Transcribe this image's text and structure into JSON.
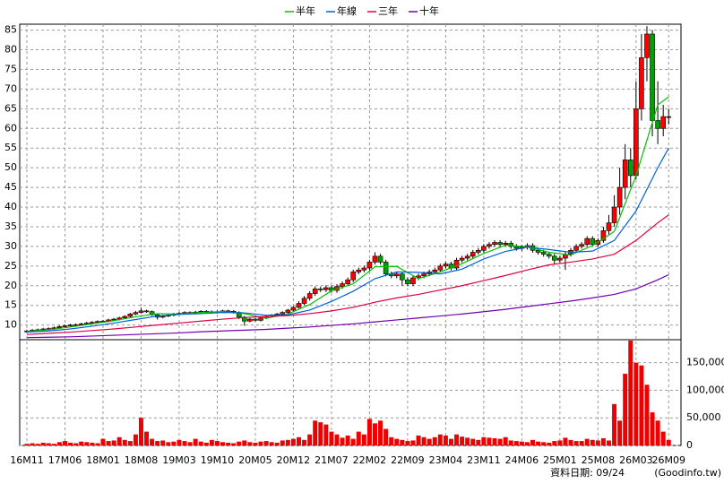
{
  "chart_data": {
    "type": "candlestick",
    "categories": [
      "16M11",
      null,
      null,
      null,
      null,
      null,
      null,
      "17M06",
      null,
      null,
      null,
      null,
      null,
      null,
      "18M01",
      null,
      null,
      null,
      null,
      null,
      null,
      "18M08",
      null,
      null,
      null,
      null,
      null,
      null,
      "19M03",
      null,
      null,
      null,
      null,
      null,
      null,
      "19M10",
      null,
      null,
      null,
      null,
      null,
      null,
      "20M05",
      null,
      null,
      null,
      null,
      null,
      null,
      "20M12",
      null,
      null,
      null,
      null,
      null,
      null,
      "21M07",
      null,
      null,
      null,
      null,
      null,
      null,
      "22M02",
      null,
      null,
      null,
      null,
      null,
      null,
      "22M09",
      null,
      null,
      null,
      null,
      null,
      null,
      "23M04",
      null,
      null,
      null,
      null,
      null,
      null,
      "23M11",
      null,
      null,
      null,
      null,
      null,
      null,
      "24M06",
      null,
      null,
      null,
      null,
      null,
      null,
      "25M01",
      null,
      null,
      null,
      null,
      null,
      null,
      "25M08",
      null,
      null,
      null,
      null,
      null,
      null,
      "26M03",
      null,
      null,
      null,
      null,
      null,
      "26M09"
    ],
    "open": [
      8.3,
      8.5,
      8.7,
      8.8,
      9.0,
      9.1,
      9.3,
      9.6,
      9.8,
      10.0,
      10.1,
      10.3,
      10.5,
      10.7,
      10.9,
      11.0,
      11.3,
      11.5,
      11.8,
      12.2,
      12.8,
      13.2,
      13.6,
      13.4,
      12.6,
      12.0,
      12.3,
      12.5,
      12.8,
      13.0,
      13.2,
      13.0,
      13.3,
      13.5,
      13.4,
      13.2,
      13.4,
      13.6,
      13.5,
      13.2,
      12.0,
      11.0,
      11.5,
      11.2,
      11.8,
      12.2,
      12.5,
      12.8,
      13.2,
      13.8,
      14.5,
      15.5,
      16.8,
      18.0,
      19.2,
      19.0,
      19.5,
      18.8,
      19.8,
      20.5,
      21.5,
      23.5,
      24.0,
      24.5,
      26.0,
      27.5,
      26.0,
      23.0,
      22.5,
      23.0,
      21.5,
      20.5,
      22.0,
      22.5,
      23.0,
      23.5,
      24.0,
      25.0,
      25.5,
      24.5,
      26.5,
      27.0,
      27.5,
      28.5,
      29.0,
      30.0,
      30.5,
      31.0,
      30.5,
      30.8,
      30.0,
      29.5,
      29.8,
      30.2,
      29.0,
      28.5,
      28.0,
      27.5,
      26.5,
      27.0,
      28.0,
      29.0,
      30.0,
      30.5,
      32.0,
      30.5,
      31.5,
      34.0,
      36.0,
      40.0,
      45.0,
      52.0,
      48.0,
      65.0,
      78.0,
      84.0,
      62.0,
      60.0,
      63.0
    ],
    "high": [
      8.8,
      9.0,
      9.1,
      9.3,
      9.4,
      9.6,
      9.9,
      10.1,
      10.3,
      10.4,
      10.6,
      10.8,
      11.0,
      11.2,
      11.3,
      11.6,
      11.8,
      12.1,
      12.5,
      13.1,
      13.6,
      14.4,
      13.9,
      13.7,
      12.9,
      12.6,
      12.8,
      13.1,
      13.3,
      13.5,
      13.5,
      13.6,
      13.8,
      13.8,
      13.7,
      13.7,
      13.9,
      13.9,
      13.8,
      13.5,
      12.3,
      11.8,
      11.8,
      12.1,
      12.5,
      12.8,
      13.1,
      13.5,
      14.1,
      14.8,
      16.1,
      17.4,
      18.6,
      19.8,
      19.8,
      20.1,
      20.1,
      20.4,
      21.1,
      22.1,
      24.1,
      24.6,
      25.1,
      26.6,
      28.5,
      28.1,
      26.6,
      23.6,
      23.6,
      23.6,
      22.1,
      22.6,
      23.1,
      23.6,
      24.1,
      24.6,
      25.6,
      26.1,
      26.1,
      27.1,
      27.6,
      28.1,
      29.1,
      29.6,
      30.6,
      31.1,
      31.6,
      31.6,
      31.4,
      31.4,
      30.6,
      30.4,
      30.8,
      30.8,
      29.6,
      29.1,
      28.6,
      28.1,
      27.6,
      28.6,
      29.6,
      30.6,
      31.1,
      32.6,
      32.6,
      32.1,
      35.0,
      38.0,
      43.0,
      50.0,
      56.0,
      55.0,
      72.0,
      84.0,
      86.0,
      85.0,
      72.0,
      66.0,
      65.0
    ],
    "low": [
      8.0,
      8.2,
      8.4,
      8.5,
      8.7,
      8.8,
      9.0,
      9.3,
      9.5,
      9.7,
      9.8,
      10.0,
      10.2,
      10.4,
      10.6,
      10.7,
      11.0,
      11.2,
      11.5,
      11.9,
      12.5,
      12.9,
      13.1,
      12.3,
      11.4,
      11.7,
      12.0,
      12.2,
      12.5,
      12.7,
      12.7,
      12.7,
      13.0,
      13.1,
      12.9,
      12.9,
      13.1,
      13.2,
      12.9,
      11.5,
      9.8,
      10.7,
      10.9,
      10.9,
      11.5,
      11.9,
      12.2,
      12.5,
      12.9,
      13.5,
      14.2,
      15.0,
      16.2,
      17.4,
      18.4,
      18.4,
      18.2,
      18.2,
      19.2,
      19.9,
      20.9,
      22.9,
      23.4,
      23.9,
      25.4,
      25.4,
      22.4,
      21.9,
      21.9,
      20.0,
      19.9,
      19.9,
      21.4,
      21.9,
      22.4,
      22.9,
      23.4,
      24.4,
      23.9,
      23.9,
      25.9,
      26.4,
      26.9,
      27.9,
      28.4,
      29.4,
      29.9,
      29.9,
      29.9,
      29.4,
      28.9,
      28.9,
      29.2,
      28.4,
      27.9,
      27.4,
      26.9,
      25.5,
      25.9,
      24.0,
      27.4,
      28.4,
      29.4,
      29.9,
      29.9,
      29.9,
      30.9,
      33.0,
      35.0,
      38.0,
      42.0,
      45.0,
      47.0,
      62.0,
      72.0,
      58.0,
      56.0,
      58.0,
      61.0
    ],
    "close": [
      8.5,
      8.7,
      8.8,
      9.0,
      9.1,
      9.3,
      9.6,
      9.8,
      10.0,
      10.1,
      10.3,
      10.5,
      10.7,
      10.9,
      11.0,
      11.3,
      11.5,
      11.8,
      12.2,
      12.8,
      13.2,
      13.6,
      13.4,
      12.6,
      12.0,
      12.3,
      12.5,
      12.8,
      13.0,
      13.2,
      13.0,
      13.3,
      13.5,
      13.4,
      13.2,
      13.4,
      13.6,
      13.5,
      13.2,
      12.0,
      11.0,
      11.5,
      11.2,
      11.8,
      12.2,
      12.5,
      12.8,
      13.2,
      13.8,
      14.5,
      15.5,
      16.8,
      18.0,
      19.2,
      19.0,
      19.5,
      18.8,
      19.8,
      20.5,
      21.5,
      23.5,
      24.0,
      24.5,
      26.0,
      27.5,
      26.0,
      23.0,
      22.5,
      23.0,
      21.5,
      20.5,
      22.0,
      22.5,
      23.0,
      23.5,
      24.0,
      25.0,
      25.5,
      24.5,
      26.5,
      27.0,
      27.5,
      28.5,
      29.0,
      30.0,
      30.5,
      31.0,
      30.5,
      30.8,
      30.0,
      29.5,
      29.8,
      30.2,
      29.0,
      28.5,
      28.0,
      27.5,
      26.5,
      27.0,
      28.0,
      29.0,
      30.0,
      30.5,
      32.0,
      30.5,
      31.5,
      34.0,
      36.0,
      40.0,
      45.0,
      52.0,
      48.0,
      65.0,
      78.0,
      84.0,
      62.0,
      60.0,
      63.0,
      63.0
    ],
    "up_color": "#ff0000",
    "down_color": "#00a000",
    "ylim": [
      6.5,
      86.5
    ],
    "yticks": [
      10,
      15,
      20,
      25,
      30,
      35,
      40,
      45,
      50,
      55,
      60,
      65,
      70,
      75,
      80,
      85
    ],
    "grid": true,
    "series": [
      {
        "name": "半年",
        "color": "#00c000",
        "x": [
          0,
          4,
          8,
          12,
          16,
          20,
          24,
          28,
          32,
          36,
          40,
          44,
          48,
          52,
          56,
          60,
          64,
          68,
          72,
          76,
          80,
          84,
          88,
          92,
          96,
          100,
          104,
          108,
          112,
          116,
          118
        ],
        "values": [
          8.4,
          8.8,
          9.5,
          10.3,
          11.1,
          12.1,
          12.9,
          12.8,
          13.2,
          13.4,
          12.9,
          11.7,
          12.8,
          15.2,
          18.7,
          20.5,
          24.8,
          24.9,
          21.8,
          23.5,
          25.6,
          28.2,
          30.3,
          29.9,
          28.5,
          27.8,
          30.2,
          33.8,
          48.0,
          66.0,
          68.0
        ]
      },
      {
        "name": "年線",
        "color": "#0060e0",
        "x": [
          0,
          4,
          8,
          12,
          16,
          20,
          24,
          28,
          32,
          36,
          40,
          44,
          48,
          52,
          56,
          60,
          64,
          68,
          72,
          76,
          80,
          84,
          88,
          92,
          96,
          100,
          104,
          108,
          112,
          116,
          118
        ],
        "values": [
          8.2,
          8.5,
          9.0,
          9.7,
          10.5,
          11.4,
          12.3,
          12.7,
          12.9,
          13.2,
          13.1,
          12.5,
          12.6,
          13.8,
          16.0,
          18.6,
          21.8,
          23.5,
          23.4,
          23.0,
          24.2,
          26.8,
          28.7,
          29.8,
          29.2,
          28.5,
          28.8,
          31.5,
          39.0,
          50.0,
          55.0
        ]
      },
      {
        "name": "三年",
        "color": "#e00040",
        "x": [
          0,
          4,
          8,
          12,
          16,
          20,
          24,
          28,
          32,
          36,
          40,
          44,
          48,
          52,
          56,
          60,
          64,
          68,
          72,
          76,
          80,
          84,
          88,
          92,
          96,
          100,
          104,
          108,
          112,
          116,
          118
        ],
        "values": [
          7.6,
          7.9,
          8.2,
          8.6,
          9.0,
          9.5,
          10.0,
          10.5,
          11.0,
          11.5,
          11.9,
          12.2,
          12.4,
          12.9,
          13.6,
          14.5,
          15.8,
          16.9,
          17.8,
          18.9,
          20.0,
          21.3,
          22.6,
          24.0,
          25.3,
          26.0,
          26.8,
          28.0,
          31.5,
          36.0,
          38.0
        ]
      },
      {
        "name": "十年",
        "color": "#7000b0",
        "x": [
          0,
          4,
          8,
          12,
          16,
          20,
          24,
          28,
          32,
          36,
          40,
          44,
          48,
          52,
          56,
          60,
          64,
          68,
          72,
          76,
          80,
          84,
          88,
          92,
          96,
          100,
          104,
          108,
          112,
          116,
          118
        ],
        "values": [
          6.8,
          6.9,
          7.0,
          7.2,
          7.4,
          7.6,
          7.8,
          8.0,
          8.3,
          8.5,
          8.7,
          8.9,
          9.2,
          9.5,
          9.9,
          10.3,
          10.8,
          11.3,
          11.8,
          12.3,
          12.8,
          13.4,
          14.0,
          14.7,
          15.4,
          16.1,
          16.9,
          17.8,
          19.2,
          21.5,
          22.8
        ]
      }
    ],
    "volume": {
      "color": "#ee0000",
      "values": [
        3000,
        4000,
        3000,
        5000,
        4000,
        3000,
        6000,
        8000,
        5000,
        4000,
        7000,
        6000,
        5000,
        4000,
        12000,
        8000,
        9000,
        15000,
        10000,
        8000,
        20000,
        50000,
        25000,
        12000,
        8000,
        9000,
        6000,
        7000,
        10000,
        8000,
        6000,
        12000,
        7000,
        5000,
        10000,
        8000,
        6000,
        5000,
        4000,
        7000,
        9000,
        6000,
        5000,
        7000,
        8000,
        6000,
        5000,
        9000,
        10000,
        12000,
        15000,
        10000,
        20000,
        45000,
        42000,
        38000,
        25000,
        20000,
        14000,
        18000,
        12000,
        25000,
        20000,
        48000,
        40000,
        45000,
        30000,
        15000,
        12000,
        10000,
        8000,
        9000,
        18000,
        15000,
        12000,
        15000,
        20000,
        18000,
        12000,
        20000,
        16000,
        14000,
        12000,
        10000,
        15000,
        14000,
        13000,
        12000,
        15000,
        9000,
        8000,
        7000,
        6000,
        10000,
        7000,
        6000,
        5000,
        8000,
        9000,
        14000,
        10000,
        8000,
        8000,
        12000,
        10000,
        9000,
        13000,
        9000,
        75000,
        45000,
        130000,
        190000,
        150000,
        145000,
        110000,
        60000,
        45000,
        25000,
        10000
      ],
      "ylim": [
        0,
        190000
      ],
      "yticks": [
        0,
        {
          "value": 50000,
          "label": "50,000"
        },
        {
          "value": 100000,
          "label": "100,000"
        },
        {
          "value": 150000,
          "label": "150,000"
        }
      ]
    },
    "source_date": "資料日期: 09/24",
    "source": "(Goodinfo.tw)"
  }
}
